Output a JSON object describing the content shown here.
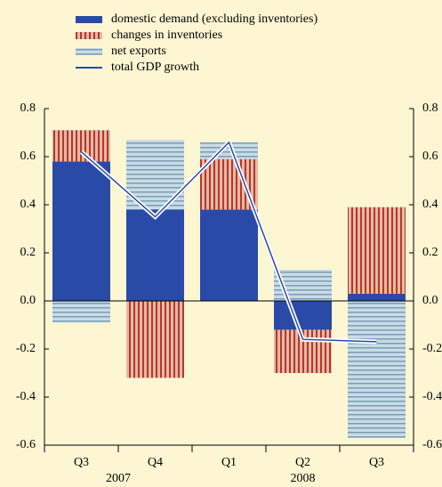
{
  "chart_data": {
    "type": "stacked-bar-line",
    "categories": [
      "Q3",
      "Q4",
      "Q1",
      "Q2",
      "Q3"
    ],
    "x_groups": [
      {
        "label": "2007",
        "span": 2
      },
      {
        "label": "2008",
        "span": 3
      }
    ],
    "series": [
      {
        "name": "domestic demand (excluding inventories)",
        "color": "#2a4aa8",
        "kind": "bar",
        "values": [
          0.58,
          0.38,
          0.38,
          -0.12,
          0.03
        ]
      },
      {
        "name": "changes in inventories",
        "color": "#b03a2e",
        "kind": "bar",
        "values": [
          0.13,
          -0.32,
          0.21,
          -0.18,
          0.36
        ]
      },
      {
        "name": "net exports",
        "color": "#7a9cb8",
        "kind": "bar",
        "values": [
          -0.09,
          0.29,
          0.07,
          0.13,
          -0.57
        ]
      },
      {
        "name": "total GDP growth",
        "color": "#2a4aa8",
        "kind": "line",
        "values": [
          0.62,
          0.35,
          0.66,
          -0.16,
          -0.17
        ]
      }
    ],
    "ylim": [
      -0.6,
      0.8
    ],
    "yticks": [
      -0.6,
      -0.4,
      -0.2,
      {
        "value": 0,
        "label": "0.0"
      },
      0.2,
      0.4,
      0.6,
      0.8
    ]
  }
}
